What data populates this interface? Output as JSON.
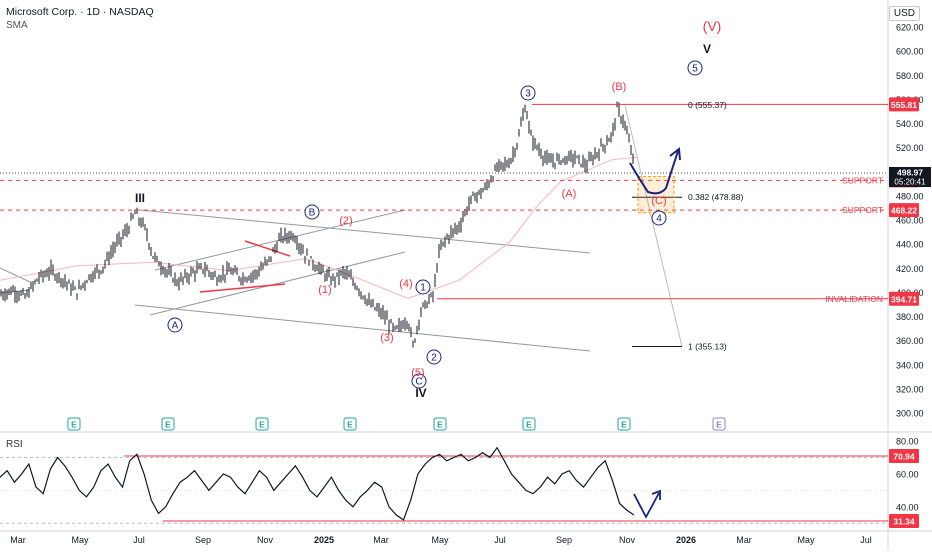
{
  "header": {
    "title": "Microsoft Corp. · 1D · NASDAQ",
    "indicator": "SMA",
    "currency": "USD",
    "rsi_label": "RSI"
  },
  "colors": {
    "bar": "#131722",
    "red": "#f23645",
    "blue_wave": "#2962ff",
    "navy": "#1a237e",
    "orange": "#f5a623",
    "sma": "#f4b6bd",
    "gray_line": "#9598a1",
    "earnings": "#26a69a"
  },
  "chart_data": [
    {
      "type": "candlestick",
      "symbol": "Microsoft Corp.",
      "timeframe": "1D",
      "exchange": "NASDAQ",
      "y_axis": {
        "ticks": [
          300,
          320,
          340,
          360,
          380,
          400,
          420,
          440,
          460,
          480,
          500,
          520,
          540,
          560,
          580,
          600,
          620
        ],
        "range": [
          293,
          635
        ]
      },
      "x_axis": {
        "ticks": [
          "Mar",
          "May",
          "Jul",
          "Sep",
          "Nov",
          "2025",
          "Mar",
          "May",
          "Jul",
          "Sep",
          "Nov",
          "2026",
          "Mar",
          "May",
          "Jul"
        ]
      },
      "price_path": [
        [
          0,
          398
        ],
        [
          0.5,
          402
        ],
        [
          1,
          396
        ],
        [
          1.5,
          412
        ],
        [
          2,
          418
        ],
        [
          2.5,
          410
        ],
        [
          3,
          400
        ],
        [
          3.5,
          413
        ],
        [
          4,
          420
        ],
        [
          4.5,
          438
        ],
        [
          5,
          452
        ],
        [
          5.3,
          466
        ],
        [
          5.7,
          452
        ],
        [
          6,
          430
        ],
        [
          6.5,
          418
        ],
        [
          7,
          408
        ],
        [
          7.5,
          416
        ],
        [
          8,
          420
        ],
        [
          8.5,
          412
        ],
        [
          9,
          418
        ],
        [
          9.5,
          412
        ],
        [
          10,
          415
        ],
        [
          10.5,
          425
        ],
        [
          11,
          445
        ],
        [
          11.5,
          448
        ],
        [
          12,
          430
        ],
        [
          12.5,
          420
        ],
        [
          13,
          410
        ],
        [
          13.5,
          417
        ],
        [
          14,
          405
        ],
        [
          14.5,
          390
        ],
        [
          15,
          382
        ],
        [
          15.5,
          368
        ],
        [
          16,
          378
        ],
        [
          16.2,
          355
        ],
        [
          16.5,
          385
        ],
        [
          17,
          398
        ],
        [
          17.2,
          432
        ],
        [
          17.5,
          445
        ],
        [
          18,
          455
        ],
        [
          18.5,
          478
        ],
        [
          19,
          485
        ],
        [
          19.5,
          503
        ],
        [
          20,
          508
        ],
        [
          20.3,
          525
        ],
        [
          20.6,
          555
        ],
        [
          20.8,
          530
        ],
        [
          21,
          522
        ],
        [
          21.5,
          508
        ],
        [
          22,
          510
        ],
        [
          22.5,
          512
        ],
        [
          23,
          505
        ],
        [
          23.5,
          518
        ],
        [
          24,
          530
        ],
        [
          24.2,
          552
        ],
        [
          24.5,
          540
        ],
        [
          24.8,
          512
        ],
        [
          25,
          500
        ]
      ],
      "last_price": {
        "value": 498.97,
        "countdown": "05:20:41"
      },
      "sma_path": [
        [
          0,
          410
        ],
        [
          3,
          422
        ],
        [
          6,
          425
        ],
        [
          9,
          418
        ],
        [
          12,
          428
        ],
        [
          14,
          412
        ],
        [
          16,
          395
        ],
        [
          18,
          410
        ],
        [
          20,
          442
        ],
        [
          21,
          470
        ],
        [
          22,
          492
        ],
        [
          24,
          510
        ],
        [
          25,
          512
        ]
      ],
      "horizontal_levels": [
        {
          "label": "555.81",
          "style": "solid"
        },
        {
          "label": "492.86",
          "text": "SUPPORT",
          "style": "dashed"
        },
        {
          "label": "468.22",
          "text": "SUPPORT",
          "style": "dashed"
        },
        {
          "label": "394.71",
          "text": "INVALIDATION",
          "style": "solid"
        }
      ],
      "fibonacci": [
        {
          "text": "0 (555.37)",
          "price": 555.37
        },
        {
          "text": "0.382 (478.88)",
          "price": 478.88
        },
        {
          "text": "1 (355.13)",
          "price": 355.13
        }
      ],
      "wave_labels": {
        "circled_blue": [
          "A",
          "B",
          "C",
          "1",
          "2",
          "3",
          "4",
          "5"
        ],
        "red_paren": [
          "(1)",
          "(2)",
          "(3)",
          "(4)",
          "(5)",
          "(A)",
          "(B)",
          "(C)",
          "(V)"
        ],
        "black_roman": [
          "III",
          "IV",
          "V"
        ]
      },
      "earnings_markers": [
        "E",
        "E",
        "E",
        "E",
        "E",
        "E",
        "E",
        "E"
      ]
    },
    {
      "type": "line",
      "name": "RSI",
      "y_axis": {
        "ticks": [
          40,
          60,
          80
        ],
        "range": [
          28,
          86
        ]
      },
      "highlighted_levels": [
        "70.94",
        "31.34"
      ],
      "values": [
        58,
        62,
        55,
        60,
        66,
        52,
        48,
        63,
        70,
        65,
        58,
        50,
        46,
        52,
        62,
        66,
        58,
        52,
        68,
        72,
        60,
        44,
        36,
        40,
        48,
        55,
        58,
        62,
        56,
        50,
        55,
        60,
        58,
        52,
        48,
        55,
        62,
        58,
        50,
        55,
        60,
        65,
        58,
        50,
        46,
        52,
        58,
        50,
        44,
        40,
        46,
        50,
        55,
        52,
        40,
        35,
        32,
        44,
        60,
        66,
        70,
        72,
        68,
        70,
        72,
        68,
        70,
        73,
        70,
        76,
        68,
        60,
        55,
        50,
        48,
        52,
        58,
        54,
        60,
        62,
        56,
        52,
        58,
        64,
        68,
        56,
        42,
        38,
        35
      ]
    }
  ]
}
